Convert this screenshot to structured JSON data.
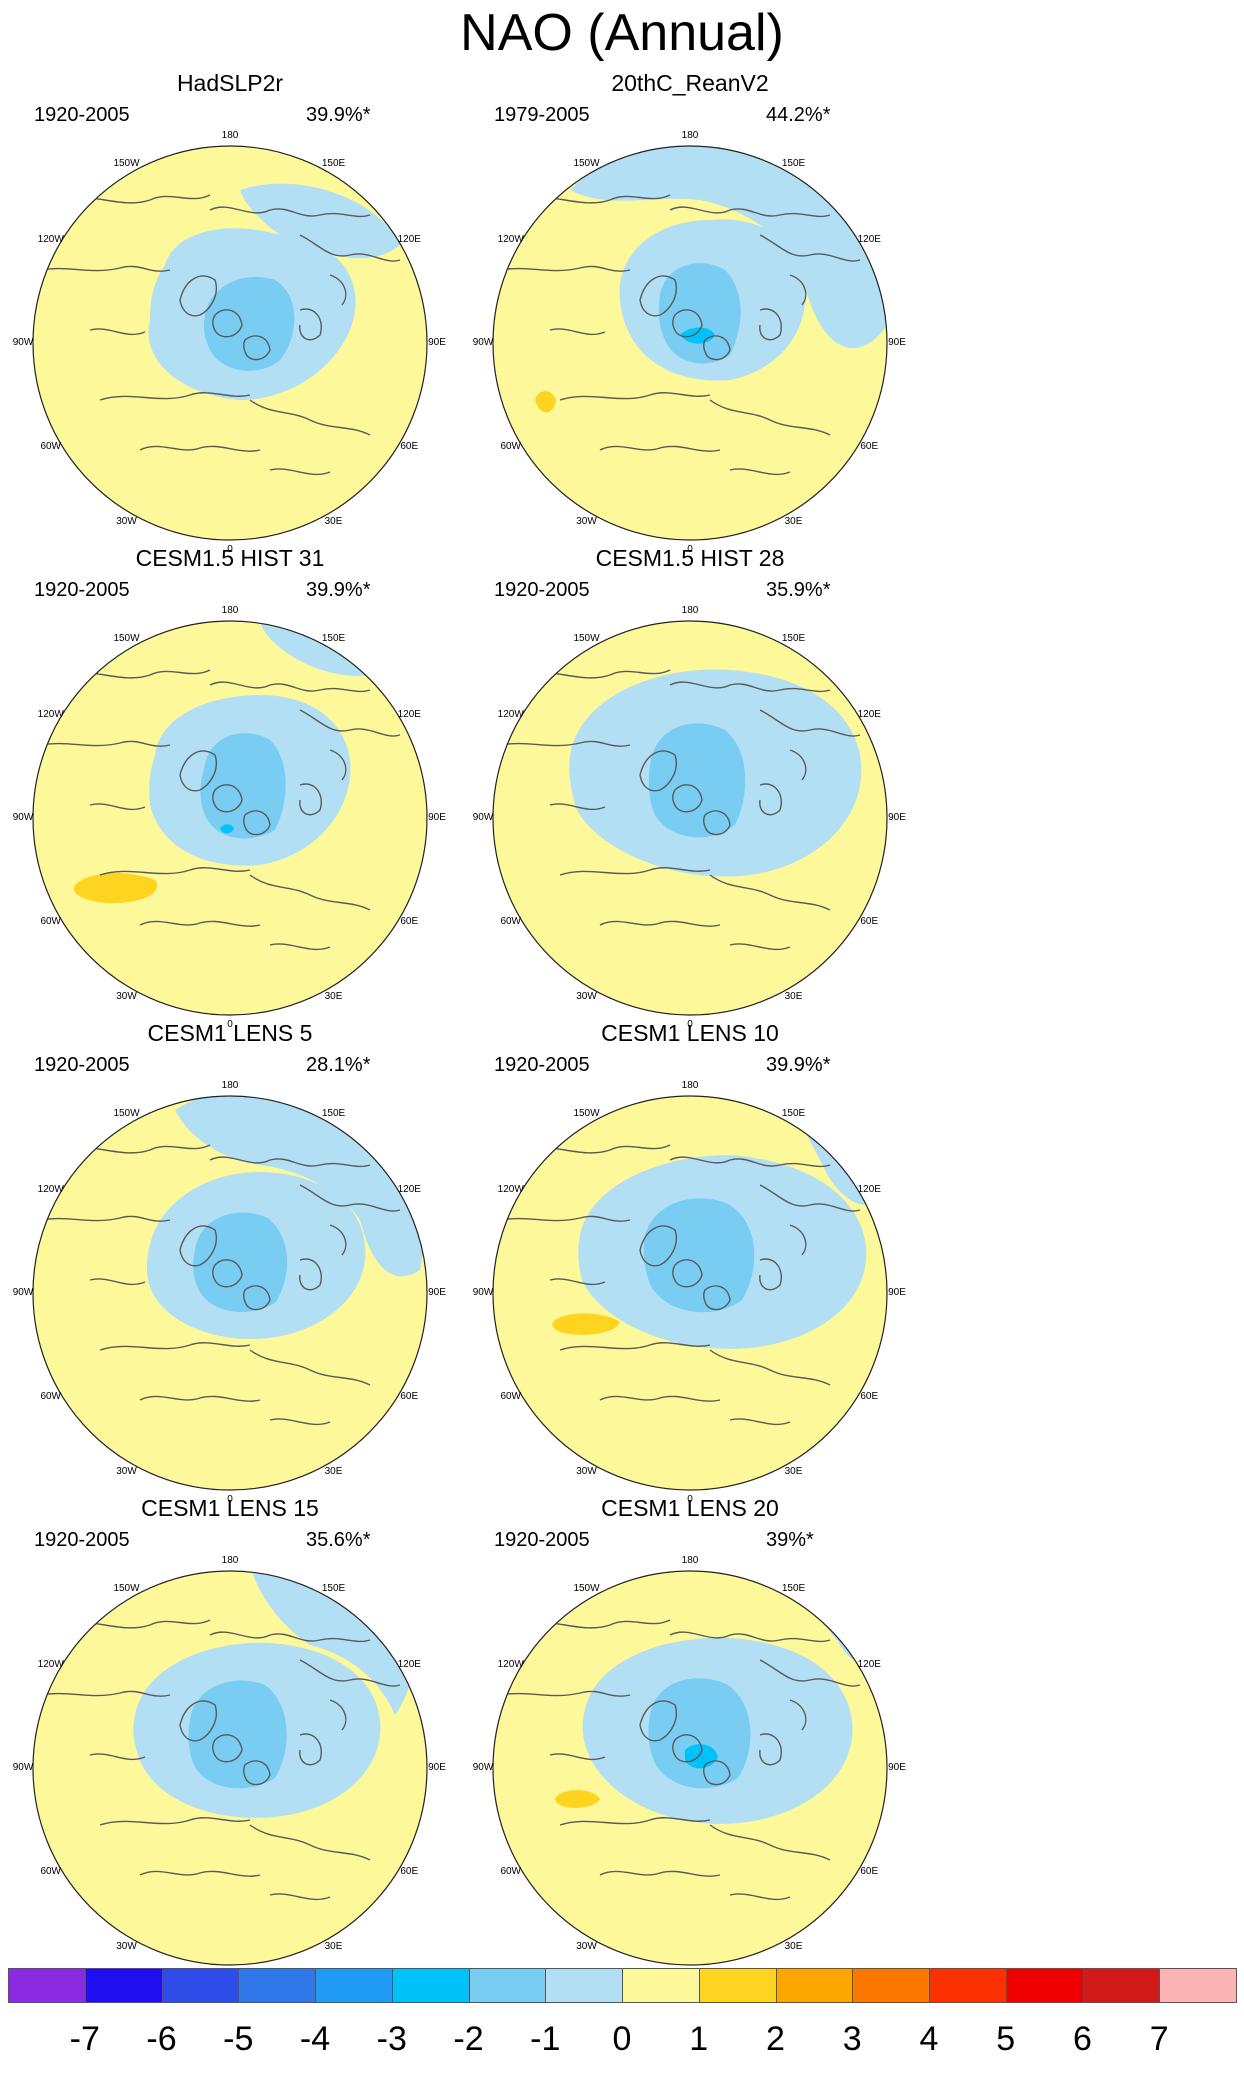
{
  "title": "NAO (Annual)",
  "longitude_labels": [
    "180",
    "150E",
    "120E",
    "90E",
    "60E",
    "30E",
    "0",
    "30W",
    "60W",
    "90W",
    "120W",
    "150W"
  ],
  "colors": {
    "land_outline": "#5a5a5a",
    "map_border": "#222222",
    "positive_fill": "#fdf99a",
    "negative_fill": "#b3dff4"
  },
  "panels": [
    {
      "title": "HadSLP2r",
      "years": "1920-2005",
      "percent": "39.9%*"
    },
    {
      "title": "20thC_ReanV2",
      "years": "1979-2005",
      "percent": "44.2%*"
    },
    {
      "title": "CESM1.5 HIST 31",
      "years": "1920-2005",
      "percent": "39.9%*"
    },
    {
      "title": "CESM1.5 HIST 28",
      "years": "1920-2005",
      "percent": "35.9%*"
    },
    {
      "title": "CESM1 LENS 5",
      "years": "1920-2005",
      "percent": "28.1%*"
    },
    {
      "title": "CESM1 LENS 10",
      "years": "1920-2005",
      "percent": "39.9%*"
    },
    {
      "title": "CESM1 LENS 15",
      "years": "1920-2005",
      "percent": "35.6%*"
    },
    {
      "title": "CESM1 LENS 20",
      "years": "1920-2005",
      "percent": "39%*"
    }
  ],
  "colorbar": {
    "labels": [
      "-7",
      "-6",
      "-5",
      "-4",
      "-3",
      "-2",
      "-1",
      "0",
      "1",
      "2",
      "3",
      "4",
      "5",
      "6",
      "7"
    ],
    "colors": [
      "#8a2be2",
      "#1f0ff0",
      "#2e4de8",
      "#3077ea",
      "#1f9bf5",
      "#00c2fa",
      "#79cdf2",
      "#b3dff4",
      "#fdf99a",
      "#fdd41f",
      "#fba700",
      "#fb7800",
      "#fb3200",
      "#ef0000",
      "#d21a1a",
      "#fdb4b4"
    ]
  }
}
